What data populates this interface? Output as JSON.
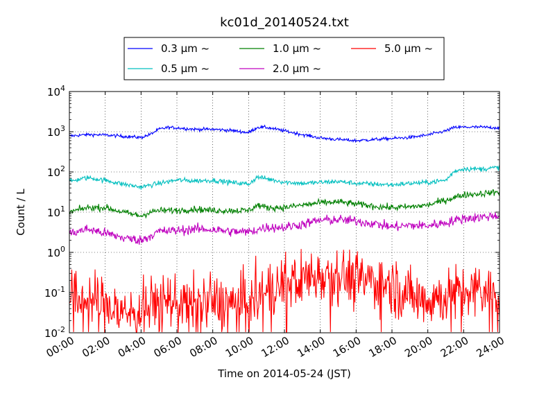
{
  "chart_data": {
    "type": "line",
    "title": "kc01d_20140524.txt",
    "xlabel": "Time on 2014-05-24 (JST)",
    "ylabel": "Count / L",
    "x_range_hours": [
      0,
      24
    ],
    "ylim": [
      0.01,
      10000
    ],
    "y_scale": "log",
    "grid": true,
    "legend_position": "top-center",
    "x_ticks": [
      "00:00",
      "02:00",
      "04:00",
      "06:00",
      "08:00",
      "10:00",
      "12:00",
      "14:00",
      "16:00",
      "18:00",
      "20:00",
      "22:00",
      "24:00"
    ],
    "y_ticks": [
      {
        "value": 0.01,
        "base": "10",
        "exp": "-2"
      },
      {
        "value": 0.1,
        "base": "10",
        "exp": "-1"
      },
      {
        "value": 1,
        "base": "10",
        "exp": "0"
      },
      {
        "value": 10,
        "base": "10",
        "exp": "1"
      },
      {
        "value": 100,
        "base": "10",
        "exp": "2"
      },
      {
        "value": 1000,
        "base": "10",
        "exp": "3"
      },
      {
        "value": 10000,
        "base": "10",
        "exp": "4"
      }
    ],
    "series": [
      {
        "name": "0.3 μm ~",
        "color": "#0000ff",
        "noise": 0.02,
        "points": [
          [
            0,
            780
          ],
          [
            1,
            850
          ],
          [
            2,
            830
          ],
          [
            3,
            770
          ],
          [
            4,
            720
          ],
          [
            4.5,
            850
          ],
          [
            5,
            1150
          ],
          [
            5.5,
            1280
          ],
          [
            6,
            1250
          ],
          [
            7,
            1150
          ],
          [
            8,
            1150
          ],
          [
            9,
            1080
          ],
          [
            10,
            950
          ],
          [
            10.5,
            1300
          ],
          [
            11,
            1280
          ],
          [
            12,
            1050
          ],
          [
            13,
            850
          ],
          [
            14,
            700
          ],
          [
            15,
            640
          ],
          [
            16,
            600
          ],
          [
            17,
            640
          ],
          [
            18,
            680
          ],
          [
            19,
            720
          ],
          [
            20,
            830
          ],
          [
            21,
            1050
          ],
          [
            21.5,
            1280
          ],
          [
            22,
            1300
          ],
          [
            23,
            1300
          ],
          [
            24,
            1250
          ]
        ]
      },
      {
        "name": "0.5 μm ~",
        "color": "#00bfbf",
        "noise": 0.03,
        "points": [
          [
            0,
            58
          ],
          [
            1,
            72
          ],
          [
            2,
            62
          ],
          [
            3,
            50
          ],
          [
            4,
            42
          ],
          [
            5,
            52
          ],
          [
            6,
            63
          ],
          [
            7,
            60
          ],
          [
            8,
            62
          ],
          [
            9,
            55
          ],
          [
            10,
            50
          ],
          [
            10.5,
            75
          ],
          [
            11,
            68
          ],
          [
            12,
            56
          ],
          [
            13,
            52
          ],
          [
            14,
            55
          ],
          [
            15,
            58
          ],
          [
            16,
            52
          ],
          [
            17,
            50
          ],
          [
            18,
            48
          ],
          [
            19,
            52
          ],
          [
            20,
            55
          ],
          [
            21,
            62
          ],
          [
            21.5,
            105
          ],
          [
            22,
            120
          ],
          [
            23,
            118
          ],
          [
            24,
            130
          ]
        ]
      },
      {
        "name": "1.0 μm ~",
        "color": "#008000",
        "noise": 0.04,
        "points": [
          [
            0,
            10
          ],
          [
            1,
            13
          ],
          [
            2,
            13
          ],
          [
            3,
            10
          ],
          [
            4,
            8
          ],
          [
            4.5,
            10
          ],
          [
            5,
            11
          ],
          [
            6,
            11
          ],
          [
            7,
            12
          ],
          [
            8,
            11
          ],
          [
            9,
            11
          ],
          [
            10,
            11
          ],
          [
            10.5,
            15
          ],
          [
            11,
            13
          ],
          [
            12,
            13
          ],
          [
            13,
            15
          ],
          [
            14,
            17
          ],
          [
            15,
            18
          ],
          [
            16,
            16
          ],
          [
            17,
            14
          ],
          [
            18,
            13
          ],
          [
            19,
            13.5
          ],
          [
            20,
            15
          ],
          [
            21,
            20
          ],
          [
            22,
            27
          ],
          [
            23,
            29
          ],
          [
            24,
            32
          ]
        ]
      },
      {
        "name": "2.0 μm ~",
        "color": "#bf00bf",
        "noise": 0.06,
        "points": [
          [
            0,
            2.9
          ],
          [
            1,
            3.8
          ],
          [
            2,
            3
          ],
          [
            3,
            2.3
          ],
          [
            4,
            2
          ],
          [
            5,
            3.3
          ],
          [
            6,
            3.5
          ],
          [
            7,
            3.8
          ],
          [
            8,
            3.7
          ],
          [
            9,
            3.3
          ],
          [
            10,
            3.2
          ],
          [
            10.5,
            3.7
          ],
          [
            11,
            4.2
          ],
          [
            12,
            4.2
          ],
          [
            13,
            5
          ],
          [
            14,
            6.3
          ],
          [
            15,
            6.5
          ],
          [
            16,
            6
          ],
          [
            17,
            5.2
          ],
          [
            18,
            4.3
          ],
          [
            19,
            4.7
          ],
          [
            20,
            4.6
          ],
          [
            21,
            5.5
          ],
          [
            22,
            7
          ],
          [
            23,
            7.5
          ],
          [
            24,
            8.5
          ]
        ]
      },
      {
        "name": "5.0 μm ~",
        "color": "#ff0000",
        "noise": 0.35,
        "points": [
          [
            0,
            0.06
          ],
          [
            1,
            0.07
          ],
          [
            2,
            0.05
          ],
          [
            3,
            0.03
          ],
          [
            4,
            0.035
          ],
          [
            5,
            0.06
          ],
          [
            6,
            0.06
          ],
          [
            7,
            0.05
          ],
          [
            8,
            0.06
          ],
          [
            9,
            0.05
          ],
          [
            10,
            0.06
          ],
          [
            11,
            0.1
          ],
          [
            12,
            0.17
          ],
          [
            13,
            0.22
          ],
          [
            14,
            0.3
          ],
          [
            15,
            0.3
          ],
          [
            16,
            0.2
          ],
          [
            17,
            0.2
          ],
          [
            18,
            0.15
          ],
          [
            19,
            0.08
          ],
          [
            20,
            0.07
          ],
          [
            21,
            0.08
          ],
          [
            22,
            0.1
          ],
          [
            23,
            0.1
          ],
          [
            24,
            0.1
          ]
        ]
      }
    ]
  }
}
